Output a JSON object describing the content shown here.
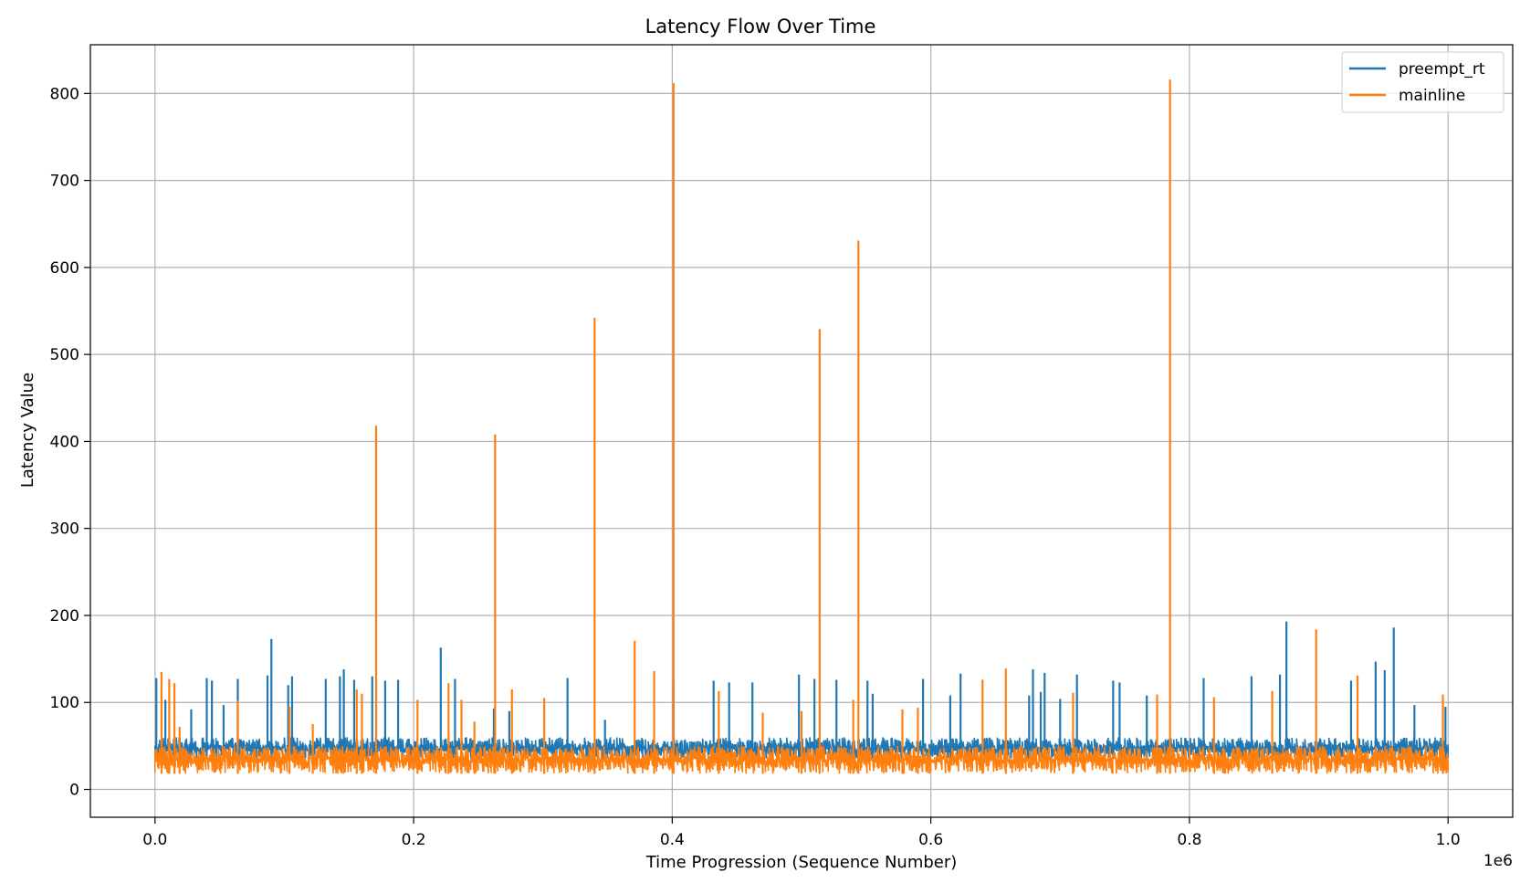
{
  "chart_data": {
    "type": "line",
    "title": "Latency Flow Over Time",
    "xlabel": "Time Progression (Sequence Number)",
    "ylabel": "Latency Value",
    "x_offset_label": "1e6",
    "xlim": [
      -0.05,
      1.05
    ],
    "ylim": [
      -32,
      856
    ],
    "x_ticks": [
      0.0,
      0.2,
      0.4,
      0.6,
      0.8,
      1.0
    ],
    "x_tick_labels": [
      "0.0",
      "0.2",
      "0.4",
      "0.6",
      "0.8",
      "1.0"
    ],
    "y_ticks": [
      0,
      100,
      200,
      300,
      400,
      500,
      600,
      700,
      800
    ],
    "y_tick_labels": [
      "0",
      "100",
      "200",
      "300",
      "400",
      "500",
      "600",
      "700",
      "800"
    ],
    "grid": true,
    "legend_position": "top-right",
    "baseline_band": {
      "x_start": 0.0,
      "x_end": 1.0
    },
    "series": [
      {
        "name": "preempt_rt",
        "color": "#1f77b4",
        "band_low": 35,
        "band_high": 60,
        "spikes": [
          {
            "x": 0.001,
            "y": 128
          },
          {
            "x": 0.008,
            "y": 103
          },
          {
            "x": 0.028,
            "y": 92
          },
          {
            "x": 0.04,
            "y": 128
          },
          {
            "x": 0.044,
            "y": 125
          },
          {
            "x": 0.053,
            "y": 97
          },
          {
            "x": 0.064,
            "y": 127
          },
          {
            "x": 0.087,
            "y": 131
          },
          {
            "x": 0.09,
            "y": 173
          },
          {
            "x": 0.103,
            "y": 120
          },
          {
            "x": 0.106,
            "y": 130
          },
          {
            "x": 0.132,
            "y": 127
          },
          {
            "x": 0.143,
            "y": 130
          },
          {
            "x": 0.146,
            "y": 138
          },
          {
            "x": 0.154,
            "y": 126
          },
          {
            "x": 0.168,
            "y": 130
          },
          {
            "x": 0.178,
            "y": 125
          },
          {
            "x": 0.188,
            "y": 126
          },
          {
            "x": 0.221,
            "y": 163
          },
          {
            "x": 0.232,
            "y": 127
          },
          {
            "x": 0.262,
            "y": 93
          },
          {
            "x": 0.274,
            "y": 90
          },
          {
            "x": 0.319,
            "y": 128
          },
          {
            "x": 0.348,
            "y": 80
          },
          {
            "x": 0.401,
            "y": 125
          },
          {
            "x": 0.432,
            "y": 125
          },
          {
            "x": 0.444,
            "y": 123
          },
          {
            "x": 0.462,
            "y": 123
          },
          {
            "x": 0.498,
            "y": 132
          },
          {
            "x": 0.51,
            "y": 127
          },
          {
            "x": 0.527,
            "y": 126
          },
          {
            "x": 0.551,
            "y": 125
          },
          {
            "x": 0.555,
            "y": 110
          },
          {
            "x": 0.594,
            "y": 127
          },
          {
            "x": 0.615,
            "y": 108
          },
          {
            "x": 0.623,
            "y": 133
          },
          {
            "x": 0.676,
            "y": 108
          },
          {
            "x": 0.679,
            "y": 138
          },
          {
            "x": 0.685,
            "y": 112
          },
          {
            "x": 0.688,
            "y": 134
          },
          {
            "x": 0.7,
            "y": 104
          },
          {
            "x": 0.713,
            "y": 132
          },
          {
            "x": 0.741,
            "y": 125
          },
          {
            "x": 0.746,
            "y": 123
          },
          {
            "x": 0.767,
            "y": 108
          },
          {
            "x": 0.811,
            "y": 128
          },
          {
            "x": 0.848,
            "y": 130
          },
          {
            "x": 0.87,
            "y": 132
          },
          {
            "x": 0.875,
            "y": 193
          },
          {
            "x": 0.925,
            "y": 125
          },
          {
            "x": 0.944,
            "y": 147
          },
          {
            "x": 0.951,
            "y": 137
          },
          {
            "x": 0.958,
            "y": 186
          },
          {
            "x": 0.974,
            "y": 97
          },
          {
            "x": 0.998,
            "y": 95
          }
        ]
      },
      {
        "name": "mainline",
        "color": "#ff7f0e",
        "band_low": 18,
        "band_high": 50,
        "spikes": [
          {
            "x": 0.005,
            "y": 135
          },
          {
            "x": 0.011,
            "y": 127
          },
          {
            "x": 0.015,
            "y": 122
          },
          {
            "x": 0.019,
            "y": 72
          },
          {
            "x": 0.064,
            "y": 102
          },
          {
            "x": 0.104,
            "y": 95
          },
          {
            "x": 0.122,
            "y": 75
          },
          {
            "x": 0.156,
            "y": 115
          },
          {
            "x": 0.16,
            "y": 110
          },
          {
            "x": 0.171,
            "y": 418
          },
          {
            "x": 0.203,
            "y": 103
          },
          {
            "x": 0.227,
            "y": 122
          },
          {
            "x": 0.237,
            "y": 103
          },
          {
            "x": 0.247,
            "y": 78
          },
          {
            "x": 0.263,
            "y": 408
          },
          {
            "x": 0.276,
            "y": 115
          },
          {
            "x": 0.301,
            "y": 105
          },
          {
            "x": 0.34,
            "y": 542
          },
          {
            "x": 0.371,
            "y": 171
          },
          {
            "x": 0.386,
            "y": 136
          },
          {
            "x": 0.401,
            "y": 812
          },
          {
            "x": 0.436,
            "y": 113
          },
          {
            "x": 0.47,
            "y": 88
          },
          {
            "x": 0.5,
            "y": 90
          },
          {
            "x": 0.514,
            "y": 529
          },
          {
            "x": 0.54,
            "y": 103
          },
          {
            "x": 0.544,
            "y": 631
          },
          {
            "x": 0.578,
            "y": 92
          },
          {
            "x": 0.59,
            "y": 94
          },
          {
            "x": 0.64,
            "y": 126
          },
          {
            "x": 0.658,
            "y": 139
          },
          {
            "x": 0.71,
            "y": 111
          },
          {
            "x": 0.775,
            "y": 109
          },
          {
            "x": 0.785,
            "y": 816
          },
          {
            "x": 0.819,
            "y": 106
          },
          {
            "x": 0.864,
            "y": 113
          },
          {
            "x": 0.898,
            "y": 184
          },
          {
            "x": 0.93,
            "y": 131
          },
          {
            "x": 0.996,
            "y": 109
          }
        ]
      }
    ]
  }
}
